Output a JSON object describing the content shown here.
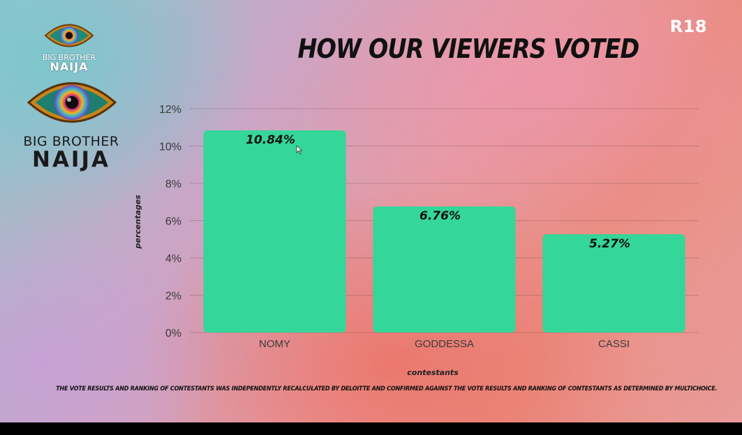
{
  "header": {
    "title": "HOW OUR VIEWERS VOTED",
    "rating": "R18"
  },
  "logos": {
    "small": {
      "line1": "BIG BROTHER",
      "line2": "NAIJA"
    },
    "large": {
      "line1": "BIG BROTHER",
      "line2": "NAIJA"
    }
  },
  "chart_data": {
    "type": "bar",
    "categories": [
      "NOMY",
      "GODDESSA",
      "CASSI"
    ],
    "values": [
      10.84,
      6.76,
      5.27
    ],
    "value_labels": [
      "10.84%",
      "6.76%",
      "5.27%"
    ],
    "title": "HOW OUR VIEWERS VOTED",
    "xlabel": "contestants",
    "ylabel": "percentages",
    "ylim": [
      0,
      12
    ],
    "yticks": [
      0,
      2,
      4,
      6,
      8,
      10,
      12
    ],
    "ytick_labels": [
      "0%",
      "2%",
      "4%",
      "6%",
      "8%",
      "10%",
      "12%"
    ],
    "grid": true,
    "bar_color": "#35d699"
  },
  "footer": {
    "disclaimer": "THE VOTE RESULTS AND RANKING OF CONTESTANTS WAS INDEPENDENTLY RECALCULATED BY DELOITTE AND CONFIRMED AGAINST THE VOTE RESULTS AND RANKING OF CONTESTANTS AS DETERMINED BY MULTICHOICE."
  },
  "icons": {
    "logo": "eye-logo-icon",
    "pointer": "mouse-cursor-icon"
  }
}
